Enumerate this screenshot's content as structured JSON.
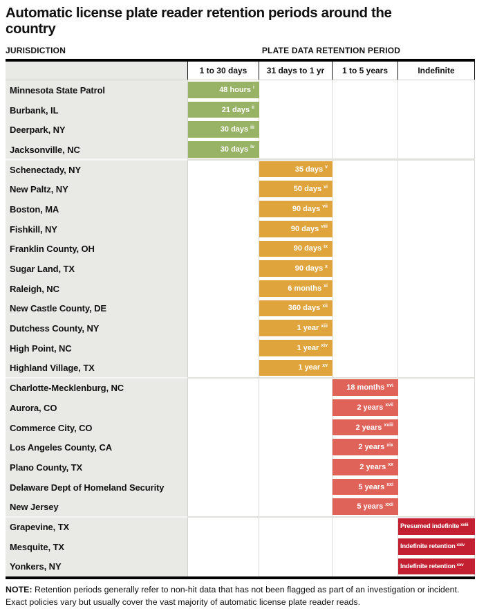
{
  "title": "Automatic license plate reader retention periods around the country",
  "section_labels": {
    "left": "JURISDICTION",
    "right": "PLATE DATA RETENTION PERIOD"
  },
  "note": {
    "label": "NOTE:",
    "text": "Retention periods generally refer to non-hit data that has not been flagged as part of an investigation or incident. Exact policies vary but usually cover the vast majority of automatic license plate reader reads."
  },
  "colors": {
    "green": "#98b266",
    "orange": "#e0a43c",
    "salmon": "#e0635a",
    "dark_red": "#c32031",
    "jurisdiction_bg": "#e9e9e6",
    "table_border": "#000000"
  },
  "chart_data": {
    "type": "table",
    "title": "Automatic license plate reader retention periods around the country",
    "columns": [
      "1 to 30 days",
      "31 days to 1 yr",
      "1 to 5 years",
      "Indefinite"
    ],
    "groups": [
      {
        "column_index": 0,
        "color_key": "green",
        "rows": [
          {
            "jurisdiction": "Minnesota State Patrol",
            "value": "48 hours",
            "footnote": "i"
          },
          {
            "jurisdiction": "Burbank, IL",
            "value": "21 days",
            "footnote": "ii"
          },
          {
            "jurisdiction": "Deerpark, NY",
            "value": "30 days",
            "footnote": "iii"
          },
          {
            "jurisdiction": "Jacksonville, NC",
            "value": "30 days",
            "footnote": "iv"
          }
        ]
      },
      {
        "column_index": 1,
        "color_key": "orange",
        "rows": [
          {
            "jurisdiction": "Schenectady, NY",
            "value": "35 days",
            "footnote": "v"
          },
          {
            "jurisdiction": "New Paltz, NY",
            "value": "50 days",
            "footnote": "vi"
          },
          {
            "jurisdiction": "Boston, MA",
            "value": "90 days",
            "footnote": "vii"
          },
          {
            "jurisdiction": "Fishkill, NY",
            "value": "90 days",
            "footnote": "viii"
          },
          {
            "jurisdiction": "Franklin County, OH",
            "value": "90 days",
            "footnote": "ix"
          },
          {
            "jurisdiction": "Sugar Land, TX",
            "value": "90 days",
            "footnote": "x"
          },
          {
            "jurisdiction": "Raleigh, NC",
            "value": "6 months",
            "footnote": "xi"
          },
          {
            "jurisdiction": "New Castle County, DE",
            "value": "360 days",
            "footnote": "xii"
          },
          {
            "jurisdiction": "Dutchess County, NY",
            "value": "1 year",
            "footnote": "xiii"
          },
          {
            "jurisdiction": "High Point, NC",
            "value": "1 year",
            "footnote": "xiv"
          },
          {
            "jurisdiction": "Highland Village, TX",
            "value": "1 year",
            "footnote": "xv"
          }
        ]
      },
      {
        "column_index": 2,
        "color_key": "salmon",
        "rows": [
          {
            "jurisdiction": "Charlotte-Mecklenburg, NC",
            "value": "18 months",
            "footnote": "xvi"
          },
          {
            "jurisdiction": "Aurora, CO",
            "value": "2 years",
            "footnote": "xvii"
          },
          {
            "jurisdiction": "Commerce City, CO",
            "value": "2 years",
            "footnote": "xviii"
          },
          {
            "jurisdiction": "Los Angeles County, CA",
            "value": "2 years",
            "footnote": "xix"
          },
          {
            "jurisdiction": "Plano County, TX",
            "value": "2 years",
            "footnote": "xx"
          },
          {
            "jurisdiction": "Delaware Dept of Homeland Security",
            "value": "5 years",
            "footnote": "xxi"
          },
          {
            "jurisdiction": "New Jersey",
            "value": "5 years",
            "footnote": "xxii"
          }
        ]
      },
      {
        "column_index": 3,
        "color_key": "dark_red",
        "rows": [
          {
            "jurisdiction": "Grapevine, TX",
            "value": "Presumed indefinite",
            "footnote": "xxiii"
          },
          {
            "jurisdiction": "Mesquite, TX",
            "value": "Indefinite retention",
            "footnote": "xxiv"
          },
          {
            "jurisdiction": "Yonkers, NY",
            "value": "Indefinite retention",
            "footnote": "xxv"
          }
        ]
      }
    ]
  }
}
